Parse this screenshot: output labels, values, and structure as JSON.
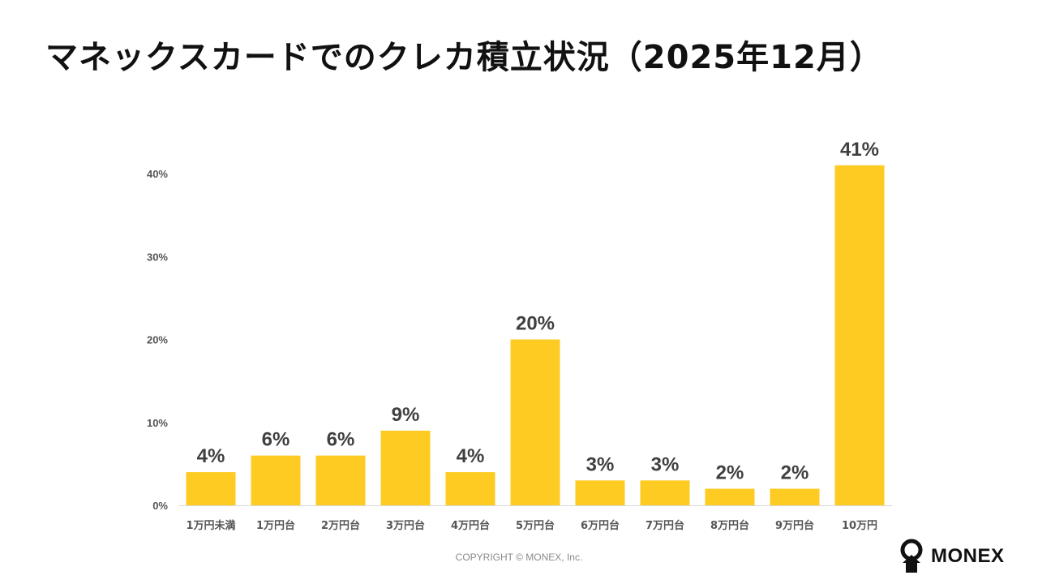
{
  "title": "マネックスカードでのクレカ積立状況（2025年12月）",
  "copyright": "COPYRIGHT © MONEX, Inc.",
  "logo_text": "MONEX",
  "colors": {
    "bar": "#FDCB22",
    "text": "#404040",
    "axis": "#d9d9d9"
  },
  "chart_data": {
    "type": "bar",
    "categories": [
      "1万円未満",
      "1万円台",
      "2万円台",
      "3万円台",
      "4万円台",
      "5万円台",
      "6万円台",
      "7万円台",
      "8万円台",
      "9万円台",
      "10万円"
    ],
    "values": [
      4,
      6,
      6,
      9,
      4,
      20,
      3,
      3,
      2,
      2,
      41
    ],
    "value_labels": [
      "4%",
      "6%",
      "6%",
      "9%",
      "4%",
      "20%",
      "3%",
      "3%",
      "2%",
      "2%",
      "41%"
    ],
    "y_ticks": [
      0,
      10,
      20,
      30,
      40
    ],
    "y_tick_labels": [
      "0%",
      "10%",
      "20%",
      "30%",
      "40%"
    ],
    "ylim": [
      0,
      40
    ],
    "grid": false,
    "xlabel": "",
    "ylabel": ""
  }
}
